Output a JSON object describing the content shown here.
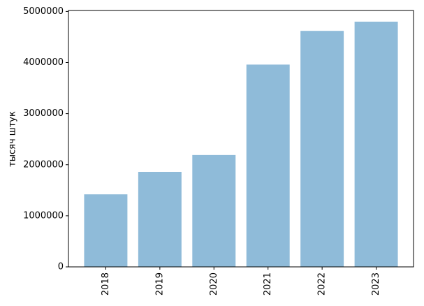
{
  "chart_data": {
    "type": "bar",
    "y_label": "тысяч штук",
    "categories": [
      "2018",
      "2019",
      "2020",
      "2021",
      "2022",
      "2023"
    ],
    "values": [
      1420000,
      1860000,
      2190000,
      3960000,
      4620000,
      4800000
    ],
    "color": "#8fbbd9",
    "ylim": [
      0,
      5019000
    ],
    "yticks": [
      0,
      1000000,
      2000000,
      3000000,
      4000000,
      5000000
    ],
    "grid": false
  }
}
